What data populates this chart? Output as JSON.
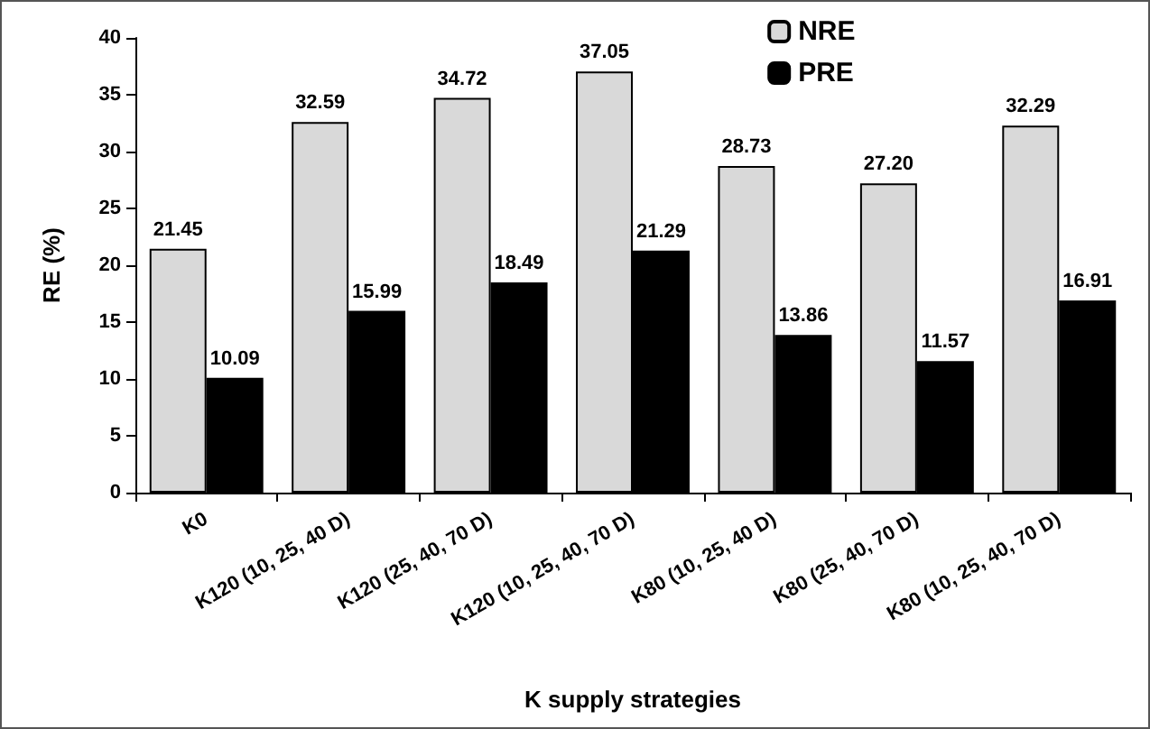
{
  "chart_data": {
    "type": "bar",
    "xlabel": "K supply strategies",
    "ylabel": "RE (%)",
    "categories": [
      "K0",
      "K120 (10, 25, 40 D)",
      "K120 (25, 40, 70 D)",
      "K120 (10, 25, 40, 70 D)",
      "K80 (10, 25, 40 D)",
      "K80 (25, 40, 70 D)",
      "K80 (10, 25, 40, 70 D)"
    ],
    "series": [
      {
        "name": "NRE",
        "color": "#d9d9d9",
        "values": [
          21.45,
          32.59,
          34.72,
          37.05,
          28.73,
          27.2,
          32.29
        ],
        "value_labels": [
          "21.45",
          "32.59",
          "34.72",
          "37.05",
          "28.73",
          "27.20",
          "32.29"
        ]
      },
      {
        "name": "PRE",
        "color": "#000000",
        "values": [
          10.09,
          15.99,
          18.49,
          21.29,
          13.86,
          11.57,
          16.91
        ],
        "value_labels": [
          "10.09",
          "15.99",
          "18.49",
          "21.29",
          "13.86",
          "11.57",
          "16.91"
        ]
      }
    ],
    "ylim": [
      0,
      40
    ],
    "yticks": [
      0,
      5,
      10,
      15,
      20,
      25,
      30,
      35,
      40
    ],
    "grid": false,
    "legend": "top"
  }
}
